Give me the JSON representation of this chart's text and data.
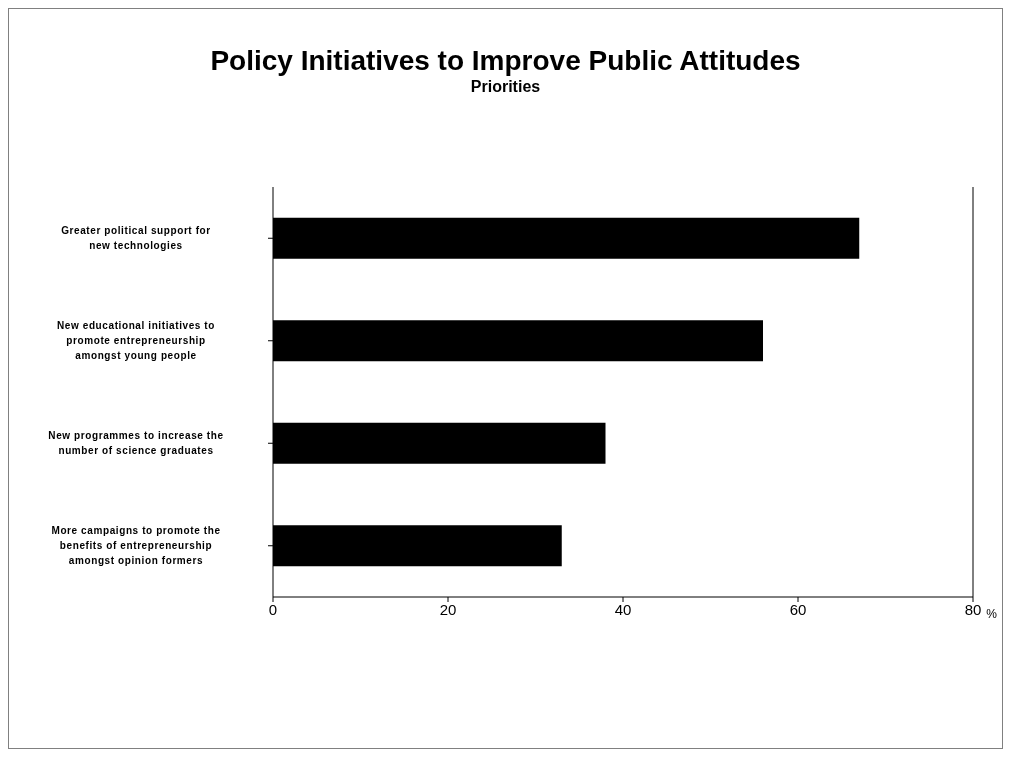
{
  "chart_data": {
    "type": "bar",
    "orientation": "horizontal",
    "title": "Policy Initiatives to Improve Public Attitudes",
    "subtitle": "Priorities",
    "xlabel": "%",
    "categories": [
      "Greater political support for new technologies",
      "New educational initiatives to promote entrepreneurship amongst young people",
      "New programmes to increase the number of science graduates",
      "More campaigns to promote the benefits of entrepreneurship amongst opinion formers"
    ],
    "values": [
      67,
      56,
      38,
      33
    ],
    "color": "#000000",
    "xlim": [
      0,
      80
    ],
    "xticks": [
      0,
      20,
      40,
      60,
      80
    ]
  }
}
